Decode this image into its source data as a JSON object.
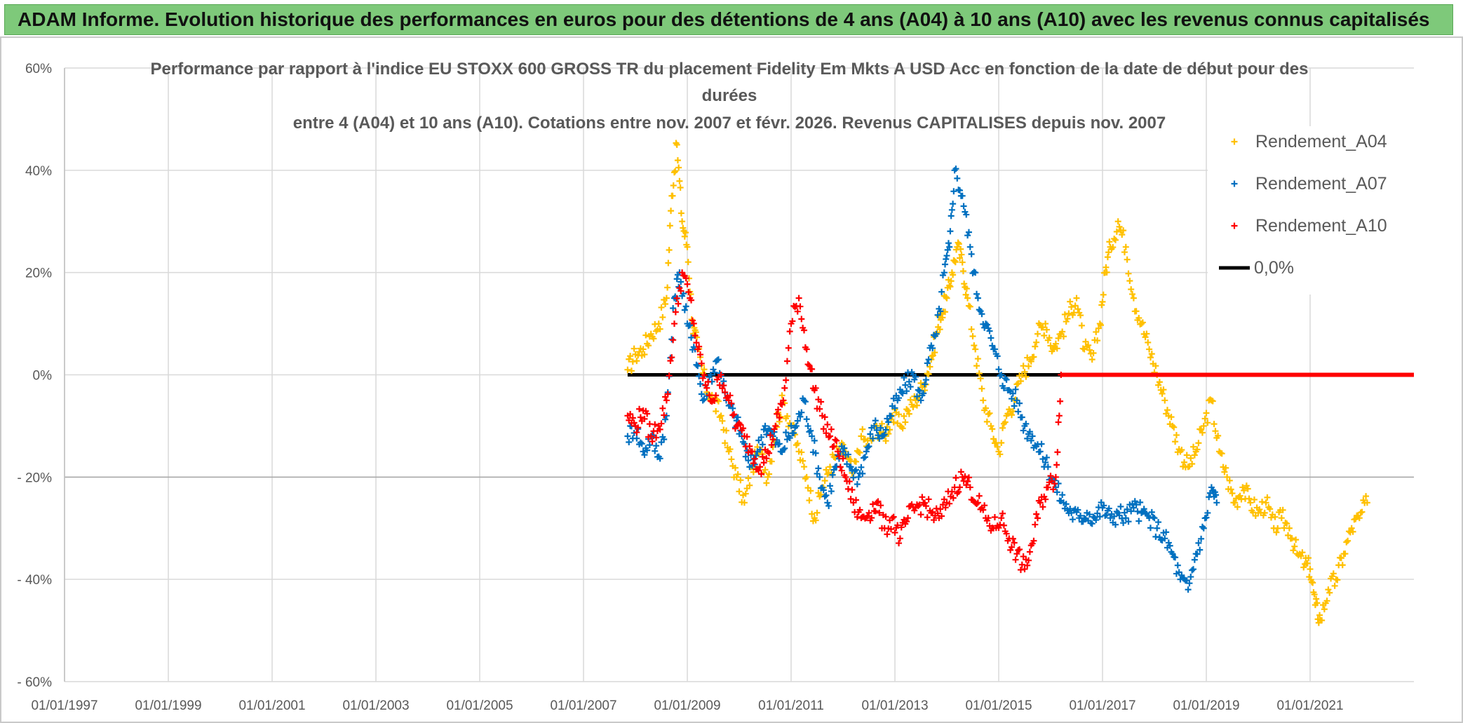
{
  "banner": {
    "title": "ADAM Informe. Evolution historique des performances en euros pour des détentions de 4 ans (A04) à 10 ans (A10) avec les revenus connus capitalisés"
  },
  "chart_data": {
    "type": "scatter",
    "title_lines": [
      "Performance par rapport à l'indice EU STOXX 600 GROSS TR  du placement Fidelity Em Mkts A USD Acc en fonction de la date de début pour des",
      "durées",
      "entre 4 (A04) et 10 ans (A10). Cotations entre nov. 2007 et févr. 2026. Revenus CAPITALISES depuis nov. 2007"
    ],
    "x_ticks": [
      "01/01/1997",
      "01/01/1999",
      "01/01/2001",
      "01/01/2003",
      "01/01/2005",
      "01/01/2007",
      "01/01/2009",
      "01/01/2011",
      "01/01/2013",
      "01/01/2015",
      "01/01/2017",
      "01/01/2019",
      "01/01/2021"
    ],
    "xlim": [
      1997.0,
      2023.0
    ],
    "y_ticks": [
      "60%",
      "40%",
      "20%",
      "0%",
      "- 20%",
      "- 40%",
      "- 60%"
    ],
    "ylim": [
      -60,
      60
    ],
    "legend_position": "top-right",
    "series": [
      {
        "name": "Rendement_A04",
        "color": "#ffc000",
        "x": [
          2007.85,
          2008.0,
          2008.15,
          2008.3,
          2008.45,
          2008.6,
          2008.7,
          2008.8,
          2008.9,
          2009.0,
          2009.1,
          2009.2,
          2009.35,
          2009.5,
          2009.65,
          2009.8,
          2009.95,
          2010.1,
          2010.25,
          2010.4,
          2010.55,
          2010.7,
          2010.85,
          2011.0,
          2011.15,
          2011.3,
          2011.45,
          2011.6,
          2011.75,
          2011.9,
          2012.05,
          2012.2,
          2012.35,
          2012.5,
          2012.65,
          2012.8,
          2012.95,
          2013.1,
          2013.25,
          2013.4,
          2013.55,
          2013.7,
          2013.8,
          2013.9,
          2014.0,
          2014.1,
          2014.2,
          2014.3,
          2014.4,
          2014.55,
          2014.7,
          2014.85,
          2015.0,
          2015.15,
          2015.3,
          2015.45,
          2015.6,
          2015.75,
          2015.9,
          2016.05,
          2016.2,
          2016.35,
          2016.5,
          2016.65,
          2016.8,
          2016.95,
          2017.05,
          2017.15,
          2017.3,
          2017.45,
          2017.6,
          2017.75,
          2017.9,
          2018.05,
          2018.2,
          2018.35,
          2018.5,
          2018.65,
          2018.8,
          2018.95,
          2019.1,
          2019.25,
          2019.4,
          2019.55,
          2019.7,
          2019.85,
          2020.0,
          2020.15,
          2020.3,
          2020.45,
          2020.6,
          2020.75,
          2020.9,
          2021.0,
          2021.1,
          2021.2,
          2021.35,
          2021.5,
          2021.65,
          2021.8,
          2021.95,
          2022.1
        ],
        "values": [
          1,
          4,
          5,
          8,
          10,
          15,
          35,
          45,
          30,
          25,
          10,
          5,
          -2,
          -5,
          -8,
          -15,
          -20,
          -25,
          -18,
          -15,
          -20,
          -10,
          -5,
          -10,
          -15,
          -20,
          -28,
          -22,
          -18,
          -15,
          -15,
          -20,
          -12,
          -14,
          -10,
          -12,
          -8,
          -10,
          -7,
          -5,
          -2,
          3,
          8,
          12,
          15,
          20,
          25,
          22,
          15,
          5,
          -5,
          -10,
          -15,
          -8,
          -5,
          0,
          3,
          8,
          10,
          5,
          8,
          12,
          15,
          5,
          3,
          10,
          20,
          25,
          30,
          25,
          15,
          10,
          5,
          0,
          -5,
          -10,
          -15,
          -18,
          -15,
          -10,
          -5,
          -15,
          -20,
          -25,
          -22,
          -25,
          -27,
          -25,
          -30,
          -28,
          -30,
          -35,
          -37,
          -38,
          -45,
          -48,
          -42,
          -40,
          -35,
          -30,
          -28,
          -25
        ]
      },
      {
        "name": "Rendement_A07",
        "color": "#0070c0",
        "x": [
          2007.85,
          2008.0,
          2008.15,
          2008.3,
          2008.45,
          2008.6,
          2008.75,
          2008.85,
          2009.0,
          2009.15,
          2009.3,
          2009.45,
          2009.6,
          2009.75,
          2009.9,
          2010.05,
          2010.2,
          2010.35,
          2010.5,
          2010.65,
          2010.8,
          2010.95,
          2011.1,
          2011.25,
          2011.4,
          2011.55,
          2011.7,
          2011.85,
          2012.0,
          2012.15,
          2012.3,
          2012.45,
          2012.6,
          2012.75,
          2012.9,
          2013.05,
          2013.2,
          2013.35,
          2013.5,
          2013.65,
          2013.8,
          2013.95,
          2014.05,
          2014.15,
          2014.3,
          2014.45,
          2014.6,
          2014.75,
          2014.9,
          2015.05,
          2015.2,
          2015.35,
          2015.5,
          2015.65,
          2015.8,
          2015.95,
          2016.1,
          2016.25,
          2016.4,
          2016.55,
          2016.7,
          2016.85,
          2017.0,
          2017.15,
          2017.3,
          2017.45,
          2017.6,
          2017.75,
          2017.9,
          2018.05,
          2018.2,
          2018.35,
          2018.5,
          2018.65,
          2018.8,
          2018.95,
          2019.1,
          2019.2
        ],
        "values": [
          -12,
          -10,
          -15,
          -12,
          -16,
          -8,
          15,
          20,
          10,
          5,
          -5,
          0,
          3,
          -5,
          -8,
          -12,
          -18,
          -15,
          -10,
          -12,
          -15,
          -12,
          -10,
          -5,
          -12,
          -20,
          -25,
          -18,
          -15,
          -18,
          -20,
          -15,
          -10,
          -12,
          -8,
          -5,
          -2,
          0,
          -5,
          3,
          8,
          20,
          25,
          40,
          35,
          25,
          15,
          10,
          5,
          0,
          -3,
          -5,
          -10,
          -12,
          -15,
          -18,
          -22,
          -25,
          -27,
          -28,
          -27,
          -28,
          -26,
          -28,
          -27,
          -28,
          -26,
          -27,
          -28,
          -30,
          -32,
          -35,
          -40,
          -42,
          -35,
          -30,
          -22,
          -25
        ]
      },
      {
        "name": "Rendement_A10",
        "color": "#ff0000",
        "x": [
          2007.85,
          2008.0,
          2008.15,
          2008.3,
          2008.45,
          2008.6,
          2008.75,
          2008.9,
          2009.05,
          2009.2,
          2009.35,
          2009.5,
          2009.65,
          2009.8,
          2009.95,
          2010.1,
          2010.25,
          2010.4,
          2010.55,
          2010.7,
          2010.85,
          2011.0,
          2011.15,
          2011.3,
          2011.45,
          2011.6,
          2011.75,
          2011.9,
          2012.05,
          2012.2,
          2012.35,
          2012.5,
          2012.65,
          2012.8,
          2012.95,
          2013.1,
          2013.25,
          2013.4,
          2013.55,
          2013.7,
          2013.85,
          2014.0,
          2014.15,
          2014.3,
          2014.45,
          2014.6,
          2014.75,
          2014.9,
          2015.05,
          2015.2,
          2015.35,
          2015.5,
          2015.65,
          2015.8,
          2015.95,
          2016.1,
          2016.2
        ],
        "values": [
          -8,
          -10,
          -7,
          -12,
          -10,
          -5,
          10,
          20,
          15,
          5,
          -2,
          -5,
          0,
          -5,
          -10,
          -12,
          -15,
          -18,
          -15,
          -10,
          -5,
          10,
          15,
          5,
          -3,
          -8,
          -12,
          -15,
          -20,
          -25,
          -28,
          -27,
          -25,
          -30,
          -28,
          -32,
          -28,
          -26,
          -25,
          -27,
          -28,
          -25,
          -22,
          -20,
          -22,
          -25,
          -28,
          -30,
          -28,
          -32,
          -35,
          -38,
          -33,
          -25,
          -22,
          -20,
          0
        ]
      },
      {
        "name": "0,0%",
        "color": "#000000",
        "x": [
          2007.85,
          2016.3
        ],
        "values": [
          0,
          0
        ]
      }
    ]
  }
}
